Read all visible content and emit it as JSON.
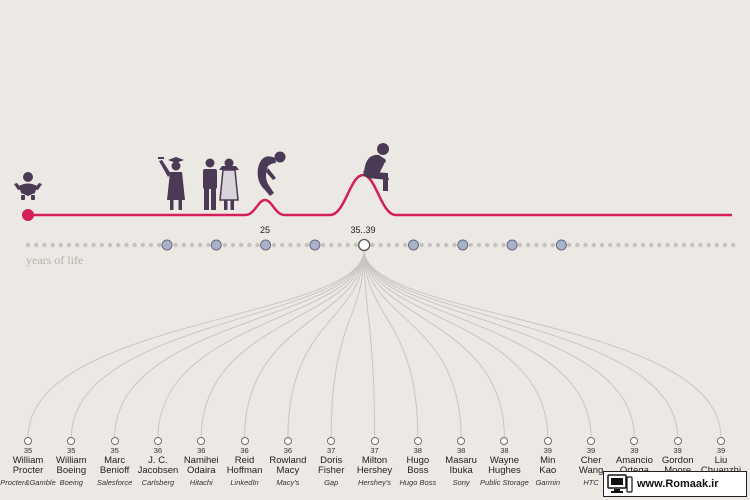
{
  "axis_caption": "years of life",
  "peaks": [
    {
      "label": "25",
      "age_pos": 5
    },
    {
      "label": "35..39",
      "age_pos": 7
    }
  ],
  "timeline": {
    "dot_count": 12,
    "selected_index": 7,
    "colors": {
      "curve": "#d41f5a",
      "node": "#a7b2cd",
      "node_border": "#6a6a7a",
      "figure": "#4b3a56",
      "connector": "#c9c6c1"
    }
  },
  "icons": [
    "baby-icon",
    "graduate-icon",
    "wedding-couple-icon",
    "hunched-person-icon",
    "thinker-icon"
  ],
  "people": [
    {
      "age": "35",
      "name": [
        "William",
        "Procter"
      ],
      "company": "Procter&Gamble"
    },
    {
      "age": "35",
      "name": [
        "William",
        "Boeing"
      ],
      "company": "Boeing"
    },
    {
      "age": "35",
      "name": [
        "Marc",
        "Benioff"
      ],
      "company": "Salesforce"
    },
    {
      "age": "36",
      "name": [
        "J. C.",
        "Jacobsen"
      ],
      "company": "Carlsberg"
    },
    {
      "age": "36",
      "name": [
        "Namihei",
        "Odaira"
      ],
      "company": "Hitachi"
    },
    {
      "age": "36",
      "name": [
        "Reid",
        "Hoffman"
      ],
      "company": "LinkedIn"
    },
    {
      "age": "36",
      "name": [
        "Rowland",
        "Macy"
      ],
      "company": "Macy's"
    },
    {
      "age": "37",
      "name": [
        "Doris",
        "Fisher"
      ],
      "company": "Gap"
    },
    {
      "age": "37",
      "name": [
        "Milton",
        "Hershey"
      ],
      "company": "Hershey's"
    },
    {
      "age": "38",
      "name": [
        "Hugo",
        "Boss"
      ],
      "company": "Hugo Boss"
    },
    {
      "age": "38",
      "name": [
        "Masaru",
        "Ibuka"
      ],
      "company": "Sony"
    },
    {
      "age": "38",
      "name": [
        "Wayne",
        "Hughes"
      ],
      "company": "Public Storage"
    },
    {
      "age": "39",
      "name": [
        "Min",
        "Kao"
      ],
      "company": "Garmin"
    },
    {
      "age": "39",
      "name": [
        "Cher",
        "Wang"
      ],
      "company": "HTC"
    },
    {
      "age": "39",
      "name": [
        "Amancio",
        "Ortega"
      ],
      "company": ""
    },
    {
      "age": "39",
      "name": [
        "Gordon",
        "Moore"
      ],
      "company": ""
    },
    {
      "age": "39",
      "name": [
        "Liu",
        "Chuanzhi"
      ],
      "company": ""
    }
  ],
  "watermark": {
    "text": "www.Romaak.ir"
  }
}
